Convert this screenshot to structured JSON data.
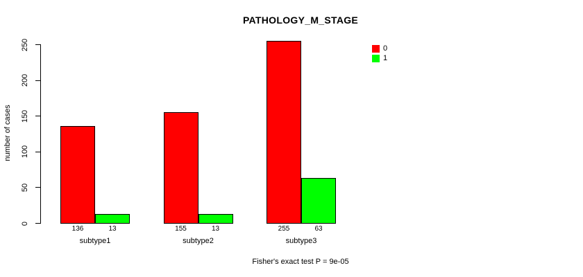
{
  "chart_data": {
    "type": "bar",
    "title": "PATHOLOGY_M_STAGE",
    "ylabel": "number of cases",
    "xlabel": "",
    "categories": [
      "subtype1",
      "subtype2",
      "subtype3"
    ],
    "series": [
      {
        "name": "0",
        "color": "#ff0000",
        "values": [
          136,
          155,
          255
        ]
      },
      {
        "name": "1",
        "color": "#00ff00",
        "values": [
          13,
          13,
          63
        ]
      }
    ],
    "bar_value_labels": [
      [
        136,
        155,
        255
      ],
      [
        13,
        13,
        63
      ]
    ],
    "ylim": [
      0,
      250
    ],
    "yticks": [
      0,
      50,
      100,
      150,
      200,
      250
    ],
    "grid": false,
    "legend": {
      "position": "top-right",
      "entries": [
        {
          "label": "0",
          "color": "#ff0000"
        },
        {
          "label": "1",
          "color": "#00ff00"
        }
      ]
    },
    "annotation": "Fisher's exact test P = 9e-05",
    "colors": {
      "bar_border": "#000000",
      "background": "#ffffff",
      "text": "#000000"
    }
  }
}
